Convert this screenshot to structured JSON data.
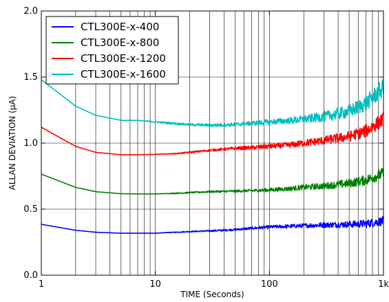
{
  "chart_data": {
    "type": "line",
    "title": "",
    "xlabel": "TIME (Seconds)",
    "ylabel": "ALLAN DEVIATION (µA)",
    "xscale": "log",
    "xlim": [
      1,
      1000
    ],
    "ylim": [
      0.0,
      2.0
    ],
    "grid": true,
    "legend_position": "top-left",
    "x_tick_labels": [
      "1",
      "10",
      "100",
      "1k"
    ],
    "y_tick_labels": [
      "0.0",
      "0.5",
      "1.0",
      "1.5",
      "2.0"
    ],
    "x_tick_values": [
      1,
      10,
      100,
      1000
    ],
    "y_tick_values": [
      0.0,
      0.5,
      1.0,
      1.5,
      2.0
    ],
    "series": [
      {
        "name": "CTL300E-x-400",
        "color": "#0000ff",
        "x": [
          1,
          2,
          3,
          5,
          7,
          10,
          15,
          20,
          30,
          50,
          70,
          100,
          150,
          200,
          300,
          500,
          700,
          1000
        ],
        "values": [
          0.385,
          0.34,
          0.325,
          0.318,
          0.318,
          0.318,
          0.325,
          0.33,
          0.335,
          0.345,
          0.355,
          0.365,
          0.37,
          0.375,
          0.38,
          0.385,
          0.39,
          0.41
        ],
        "noise": [
          0,
          0,
          0,
          0,
          0,
          0,
          0.003,
          0.004,
          0.006,
          0.008,
          0.01,
          0.012,
          0.014,
          0.016,
          0.02,
          0.025,
          0.03,
          0.035
        ]
      },
      {
        "name": "CTL300E-x-800",
        "color": "#008000",
        "x": [
          1,
          2,
          3,
          5,
          7,
          10,
          15,
          20,
          30,
          50,
          70,
          100,
          150,
          200,
          300,
          500,
          700,
          1000
        ],
        "values": [
          0.765,
          0.665,
          0.632,
          0.617,
          0.615,
          0.615,
          0.62,
          0.625,
          0.632,
          0.636,
          0.64,
          0.645,
          0.655,
          0.665,
          0.675,
          0.695,
          0.72,
          0.77
        ],
        "noise": [
          0,
          0,
          0,
          0,
          0,
          0,
          0.004,
          0.005,
          0.007,
          0.009,
          0.011,
          0.014,
          0.017,
          0.02,
          0.025,
          0.032,
          0.038,
          0.045
        ]
      },
      {
        "name": "CTL300E-x-1200",
        "color": "#ff0000",
        "x": [
          1,
          2,
          3,
          5,
          7,
          10,
          15,
          20,
          30,
          50,
          70,
          100,
          150,
          200,
          300,
          500,
          700,
          1000
        ],
        "values": [
          1.12,
          0.975,
          0.93,
          0.912,
          0.912,
          0.915,
          0.92,
          0.93,
          0.945,
          0.96,
          0.965,
          0.975,
          0.985,
          1.0,
          1.02,
          1.05,
          1.09,
          1.18
        ],
        "noise": [
          0,
          0,
          0,
          0,
          0,
          0,
          0.004,
          0.006,
          0.008,
          0.012,
          0.015,
          0.019,
          0.022,
          0.026,
          0.032,
          0.04,
          0.048,
          0.055
        ]
      },
      {
        "name": "CTL300E-x-1600",
        "color": "#00bfbf",
        "x": [
          1,
          2,
          3,
          5,
          7,
          10,
          15,
          20,
          30,
          50,
          70,
          100,
          150,
          200,
          300,
          500,
          700,
          1000
        ],
        "values": [
          1.48,
          1.28,
          1.21,
          1.172,
          1.172,
          1.16,
          1.148,
          1.14,
          1.135,
          1.14,
          1.15,
          1.16,
          1.17,
          1.18,
          1.2,
          1.24,
          1.3,
          1.42
        ],
        "noise": [
          0,
          0,
          0,
          0,
          0,
          0.006,
          0.008,
          0.009,
          0.011,
          0.014,
          0.017,
          0.021,
          0.025,
          0.03,
          0.038,
          0.05,
          0.06,
          0.07
        ]
      }
    ]
  }
}
